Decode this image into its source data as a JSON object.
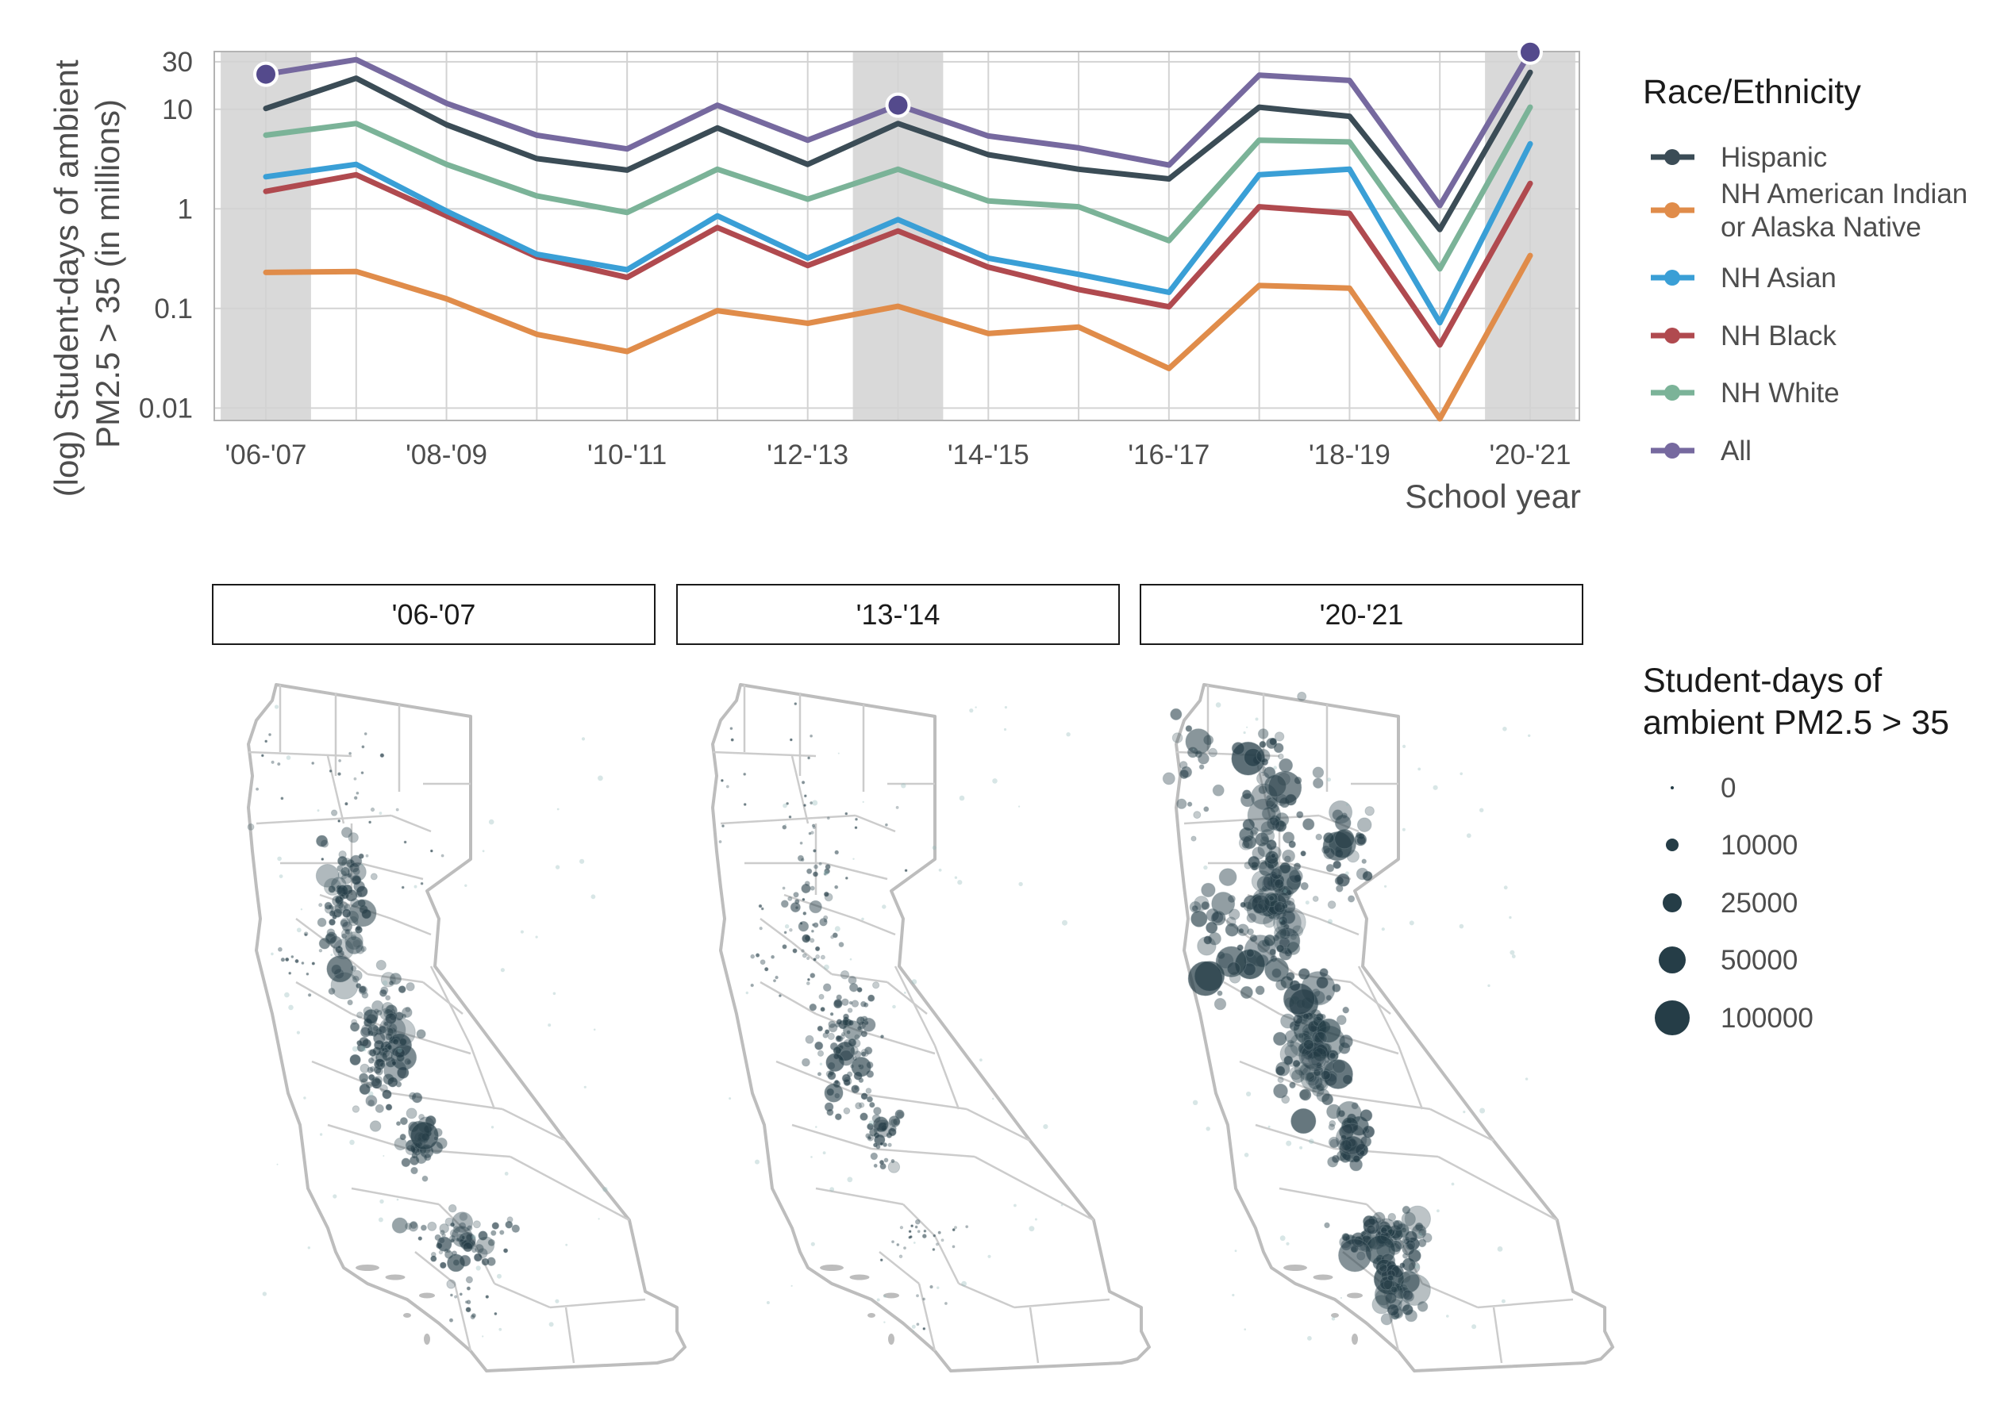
{
  "chart_data": [
    {
      "type": "line",
      "title": "",
      "xlabel": "School year",
      "ylabel": "(log) Student-days of ambient PM2.5 > 35 (in millions)",
      "ylabel_lines": [
        "(log) Student-days of ambient",
        "PM2.5 > 35 (in millions)"
      ],
      "y_scale": "log",
      "ylim": [
        0.0075,
        38
      ],
      "yticks": [
        0.01,
        0.1,
        1,
        10,
        30
      ],
      "ytick_labels": [
        "0.01",
        "0.1",
        "1",
        "10",
        "30"
      ],
      "x": [
        "'06-'07",
        "'07-'08",
        "'08-'09",
        "'09-'10",
        "'10-'11",
        "'11-'12",
        "'12-'13",
        "'13-'14",
        "'14-'15",
        "'15-'16",
        "'16-'17",
        "'17-'18",
        "'18-'19",
        "'19-'20",
        "'20-'21"
      ],
      "xtick_labels": [
        "'06-'07",
        "",
        "'08-'09",
        "",
        "'10-'11",
        "",
        "'12-'13",
        "",
        "'14-'15",
        "",
        "'16-'17",
        "",
        "'18-'19",
        "",
        "'20-'21"
      ],
      "highlighted_years": [
        "'06-'07",
        "'13-'14",
        "'20-'21"
      ],
      "grid": true,
      "legend": {
        "title": "Race/Ethnicity",
        "position": "right",
        "entries": [
          {
            "label_lines": [
              "Hispanic"
            ]
          },
          {
            "label_lines": [
              "NH American Indian",
              "or Alaska Native"
            ]
          },
          {
            "label_lines": [
              "NH Asian"
            ]
          },
          {
            "label_lines": [
              "NH Black"
            ]
          },
          {
            "label_lines": [
              "NH White"
            ]
          },
          {
            "label_lines": [
              "All"
            ]
          }
        ]
      },
      "series": [
        {
          "name": "NH American Indian or Alaska Native",
          "color": "#e08c4a",
          "values": [
            0.23,
            0.235,
            0.125,
            0.055,
            0.037,
            0.095,
            0.071,
            0.105,
            0.056,
            0.065,
            0.025,
            0.17,
            0.16,
            0.0078,
            0.34
          ]
        },
        {
          "name": "NH Black",
          "color": "#b04a4f",
          "values": [
            1.5,
            2.2,
            0.85,
            0.33,
            0.205,
            0.65,
            0.27,
            0.6,
            0.26,
            0.155,
            0.104,
            1.05,
            0.9,
            0.043,
            1.8
          ]
        },
        {
          "name": "NH Asian",
          "color": "#3a9fd6",
          "values": [
            2.1,
            2.8,
            0.95,
            0.35,
            0.245,
            0.85,
            0.32,
            0.78,
            0.32,
            0.22,
            0.145,
            2.2,
            2.5,
            0.072,
            4.5
          ]
        },
        {
          "name": "NH White",
          "color": "#7bb398",
          "values": [
            5.5,
            7.2,
            2.8,
            1.35,
            0.92,
            2.5,
            1.25,
            2.5,
            1.2,
            1.05,
            0.48,
            4.9,
            4.7,
            0.25,
            10.5
          ]
        },
        {
          "name": "Hispanic",
          "color": "#3b4c56",
          "values": [
            10.2,
            20.5,
            7.0,
            3.2,
            2.45,
            6.5,
            2.8,
            7.2,
            3.5,
            2.5,
            2.0,
            10.5,
            8.5,
            0.62,
            23.5
          ]
        },
        {
          "name": "All",
          "color": "#76699f",
          "values": [
            22.5,
            31.5,
            11.5,
            5.5,
            4.0,
            11.0,
            4.9,
            11.0,
            5.4,
            4.1,
            2.75,
            22.0,
            19.5,
            1.08,
            37.5
          ]
        }
      ],
      "point_markers": [
        {
          "year": "'06-'07",
          "value": 22.5
        },
        {
          "year": "'13-'14",
          "value": 11.0
        },
        {
          "year": "'20-'21",
          "value": 37.5
        }
      ]
    },
    {
      "type": "bubble-map",
      "title": "",
      "region": "California",
      "facets": [
        "'06-'07",
        "'13-'14",
        "'20-'21"
      ],
      "point_color": "#253d47",
      "legend": {
        "title_lines": [
          "Student-days of",
          "ambient PM2.5 > 35"
        ],
        "position": "right",
        "entries": [
          {
            "label": "0",
            "value": 0
          },
          {
            "label": "10000",
            "value": 10000
          },
          {
            "label": "25000",
            "value": 25000
          },
          {
            "label": "50000",
            "value": 50000
          },
          {
            "label": "100000",
            "value": 100000
          }
        ]
      }
    }
  ]
}
